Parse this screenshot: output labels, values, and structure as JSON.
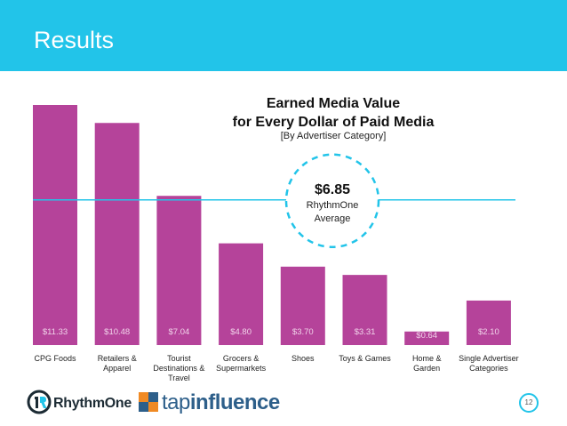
{
  "slide": {
    "title": "Results",
    "page_number": "12"
  },
  "chart_data": {
    "type": "bar",
    "title": "Earned Media Value for Every Dollar of Paid Media",
    "title_lines": [
      "Earned Media Value",
      "for Every Dollar of Paid Media"
    ],
    "subtitle": "[By Advertiser Category]",
    "categories": [
      [
        "CPG Foods"
      ],
      [
        "Retailers &",
        "Apparel"
      ],
      [
        "Tourist",
        "Destinations &",
        "Travel"
      ],
      [
        "Grocers &",
        "Supermarkets"
      ],
      [
        "Shoes"
      ],
      [
        "Toys & Games"
      ],
      [
        "Home &",
        "Garden"
      ],
      [
        "Single Advertiser",
        "Categories"
      ]
    ],
    "values": [
      11.33,
      10.48,
      7.04,
      4.8,
      3.7,
      3.31,
      0.64,
      2.1
    ],
    "value_labels": [
      "$11.33",
      "$10.48",
      "$7.04",
      "$4.80",
      "$3.70",
      "$3.31",
      "$0.64",
      "$2.10"
    ],
    "average": {
      "value": 6.85,
      "value_label": "$6.85",
      "label_lines": [
        "RhythmOne",
        "Average"
      ]
    },
    "ylim": [
      0,
      11.33
    ],
    "xlabel": "",
    "ylabel": "",
    "colors": {
      "bar": "#b5439a",
      "average_line": "#22c4e9",
      "bar_label": "#f1d3ea",
      "dashed_circle": "#22c4e9"
    }
  },
  "logos": {
    "rhythmone": "RhythmOne",
    "tapinfluence_prefix": "tap",
    "tapinfluence_suffix": "influence"
  }
}
